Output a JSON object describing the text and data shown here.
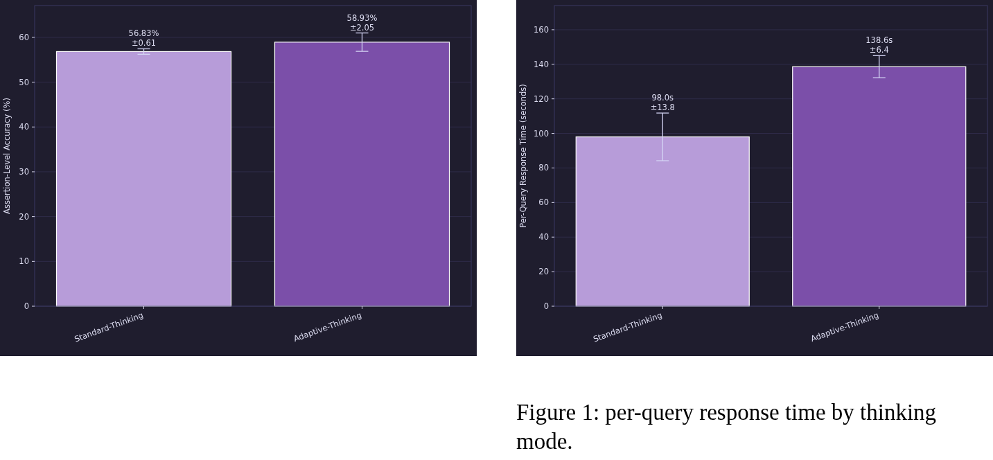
{
  "chart_data": [
    {
      "type": "bar",
      "categories": [
        "Standard-Thinking",
        "Adaptive-Thinking"
      ],
      "ylabel": "Assertion-Level Accuracy (%)",
      "values": [
        56.83,
        58.93
      ],
      "colors": [
        "#b79cd9",
        "#7b4fa9"
      ],
      "errors": [
        0.61,
        2.05
      ],
      "value_labels": [
        "56.83%\n±0.61",
        "58.93%\n±2.05"
      ],
      "ylim": [
        0,
        67.1
      ],
      "yticks": [
        0,
        10,
        20,
        30,
        40,
        50,
        60
      ],
      "grid": "y"
    },
    {
      "type": "bar",
      "categories": [
        "Standard-Thinking",
        "Adaptive-Thinking"
      ],
      "ylabel": "Per-Query Response Time (seconds)",
      "values": [
        98.0,
        138.6
      ],
      "colors": [
        "#b79cd9",
        "#7b4fa9"
      ],
      "errors": [
        13.8,
        6.4
      ],
      "value_labels": [
        "98.0s\n±13.8",
        "138.6s\n±6.4"
      ],
      "ylim": [
        0,
        174
      ],
      "yticks": [
        0,
        20,
        40,
        60,
        80,
        100,
        120,
        140,
        160
      ],
      "grid": "y",
      "annotations": [
        "Figure 1: per-query response time by thinking mode."
      ]
    }
  ]
}
